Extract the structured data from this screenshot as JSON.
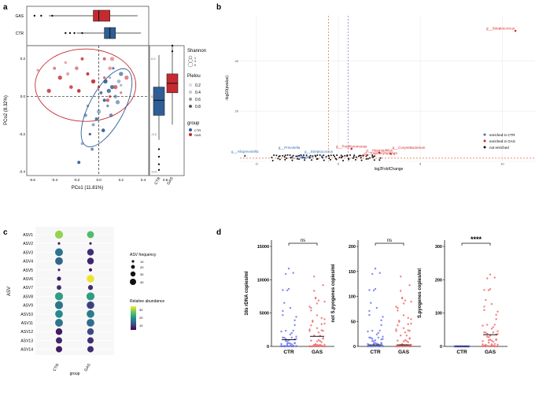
{
  "panels": {
    "a": {
      "label": "a",
      "top_box": {
        "categories": [
          "GAS",
          "CTR"
        ]
      },
      "side_box": {
        "categories": [
          "CTR",
          "GAS"
        ]
      },
      "scatter": {
        "xlabel": "PCo1 (11.81%)",
        "ylabel": "PCo2 (8.32%)",
        "xticks": [
          "-0.6",
          "-0.4",
          "-0.2",
          "0.0",
          "0.2",
          "0.4",
          "0.6"
        ],
        "yticks": [
          "0.2",
          "0.0",
          "-0.2",
          "-0.4"
        ],
        "yticks_side": [
          "0.2",
          "0.0",
          "-0.2",
          "-0.4"
        ],
        "box_xticks": [
          "CTR",
          "GAS"
        ]
      },
      "legend": {
        "shannon_title": "Shannon",
        "shannon_values": [
          "1",
          "3",
          "5"
        ],
        "pielou_title": "Pielou",
        "pielou_values": [
          "0.2",
          "0.4",
          "0.6",
          "0.8"
        ],
        "group_title": "group",
        "group_values": [
          "CTR",
          "GAS"
        ]
      },
      "colors": {
        "CTR": "#2e5e96",
        "GAS": "#c62a2f"
      }
    },
    "b": {
      "label": "b",
      "xlabel": "log2FoldChange",
      "ylabel": "-log10(pvalue)",
      "xticks": [
        "-5",
        "0",
        "5",
        "10"
      ],
      "yticks": [
        "40",
        "20"
      ],
      "labels_red": [
        "g__Streptococcus",
        "g__Porphyromonas",
        "g__Haemophilus",
        "g__Corynebacterium",
        "g__Capnocytophaga"
      ],
      "labels_blue": [
        "g__Prevotella",
        "g__Alloprevotella",
        "g__Streptococcus",
        "g__Prevotella"
      ],
      "legend": [
        "enriched in CTR",
        "enriched in GAS",
        "not enriched"
      ],
      "colors": {
        "ctr": "#3b6fb6",
        "gas": "#d62728",
        "none": "#111111"
      }
    },
    "c": {
      "label": "c",
      "ylabel": "ASV",
      "xlabel": "group",
      "rows": [
        "ASV1",
        "ASV2",
        "ASV3",
        "ASV4",
        "ASV5",
        "ASV6",
        "ASV7",
        "ASV8",
        "ASV9",
        "ASV10",
        "ASV11",
        "ASV12",
        "ASV13",
        "ASV14"
      ],
      "cols": [
        "CTR",
        "GAS"
      ],
      "legend_size_title": "ASV frequency",
      "legend_size_values": [
        "10",
        "20",
        "30",
        "40"
      ],
      "legend_color_title": "Relative abundance",
      "legend_color_ticks": [
        "30",
        "20",
        "10"
      ]
    },
    "d": {
      "label": "d",
      "plots": [
        {
          "ylabel": "16s rDNA copies/ml",
          "yticks": [
            "15000",
            "10000",
            "5000",
            "0"
          ],
          "sig": "ns",
          "cats": [
            "CTR",
            "GAS"
          ]
        },
        {
          "ylabel": "not S.pyogenes copies/ml",
          "yticks": [
            "200",
            "150",
            "100",
            "50",
            "0"
          ],
          "sig": "ns",
          "cats": [
            "CTR",
            "GAS"
          ]
        },
        {
          "ylabel": "S.pyogenes copies/ml",
          "yticks": [
            "300",
            "200",
            "100",
            "0"
          ],
          "sig": "****",
          "cats": [
            "CTR",
            "GAS"
          ]
        }
      ],
      "colors": {
        "CTR": "#6b77e8",
        "GAS": "#f06a6a"
      }
    }
  },
  "chart_data": [
    {
      "type": "scatter",
      "title": "a",
      "xlabel": "PCo1 (11.81%)",
      "ylabel": "PCo2 (8.32%)",
      "xlim": [
        -0.65,
        0.45
      ],
      "ylim": [
        -0.42,
        0.27
      ],
      "series": [
        {
          "name": "CTR",
          "points": [
            [
              0.1,
              0.1
            ],
            [
              0.12,
              0.05
            ],
            [
              0.15,
              0.0
            ],
            [
              0.05,
              -0.02
            ],
            [
              0.08,
              -0.05
            ],
            [
              0.0,
              -0.08
            ],
            [
              -0.02,
              -0.12
            ],
            [
              -0.05,
              -0.15
            ],
            [
              -0.08,
              -0.2
            ],
            [
              0.2,
              0.12
            ],
            [
              0.18,
              0.08
            ],
            [
              0.02,
              0.02
            ],
            [
              -0.1,
              -0.05
            ],
            [
              0.06,
              0.08
            ],
            [
              0.11,
              -0.1
            ],
            [
              -0.15,
              -0.25
            ],
            [
              0.13,
              0.15
            ],
            [
              0.17,
              -0.03
            ],
            [
              0.04,
              -0.18
            ],
            [
              -0.06,
              -0.28
            ],
            [
              0.2,
              0.06
            ],
            [
              0.09,
              0.03
            ],
            [
              -0.12,
              -0.1
            ],
            [
              -0.18,
              -0.35
            ]
          ]
        },
        {
          "name": "GAS",
          "points": [
            [
              -0.3,
              0.18
            ],
            [
              -0.35,
              0.1
            ],
            [
              -0.2,
              0.15
            ],
            [
              -0.1,
              0.12
            ],
            [
              0.05,
              0.1
            ],
            [
              0.12,
              0.2
            ],
            [
              -0.25,
              0.05
            ],
            [
              -0.4,
              0.15
            ],
            [
              0.0,
              0.05
            ],
            [
              0.15,
              0.05
            ],
            [
              0.1,
              0.15
            ],
            [
              -0.15,
              0.2
            ],
            [
              0.2,
              0.02
            ],
            [
              -0.05,
              0.08
            ],
            [
              0.08,
              -0.02
            ],
            [
              -0.28,
              0.12
            ],
            [
              0.1,
              0.0
            ],
            [
              0.25,
              0.1
            ],
            [
              -0.18,
              0.03
            ],
            [
              0.05,
              0.2
            ],
            [
              -0.55,
              0.14
            ],
            [
              -0.45,
              0.03
            ]
          ]
        }
      ],
      "marginal_boxplots": {
        "PCo1": {
          "GAS": {
            "q1": -0.05,
            "median": 0.0,
            "q3": 0.1,
            "whisker_low": -0.45,
            "whisker_high": 0.35
          },
          "CTR": {
            "q1": 0.05,
            "median": 0.1,
            "q3": 0.15,
            "whisker_low": -0.2,
            "whisker_high": 0.38
          }
        },
        "PCo2": {
          "CTR": {
            "q1": -0.1,
            "median": -0.02,
            "q3": 0.05,
            "whisker_low": -0.23,
            "whisker_high": 0.22
          },
          "GAS": {
            "q1": 0.02,
            "median": 0.07,
            "q3": 0.12,
            "whisker_low": -0.15,
            "whisker_high": 0.27
          }
        }
      }
    },
    {
      "type": "scatter",
      "title": "b",
      "xlabel": "log2FoldChange",
      "ylabel": "-log10(pvalue)",
      "xlim": [
        -6,
        12
      ],
      "ylim": [
        0,
        58
      ],
      "series": [
        {
          "name": "enriched in GAS",
          "points": [
            [
              10.8,
              52
            ],
            [
              0.8,
              5
            ],
            [
              2.5,
              3.5
            ],
            [
              3.2,
              3
            ],
            [
              1.5,
              2.3
            ]
          ]
        },
        {
          "name": "enriched in CTR",
          "points": [
            [
              -5.7,
              2.2
            ],
            [
              -2.3,
              2.5
            ],
            [
              -2.2,
              1.5
            ],
            [
              -1.0,
              2.0
            ]
          ]
        }
      ]
    },
    {
      "type": "heatmap",
      "title": "c",
      "categories": [
        "CTR",
        "GAS"
      ],
      "rows": [
        "ASV1",
        "ASV2",
        "ASV3",
        "ASV4",
        "ASV5",
        "ASV6",
        "ASV7",
        "ASV8",
        "ASV9",
        "ASV10",
        "ASV11",
        "ASV12",
        "ASV13",
        "ASV14"
      ],
      "series": [
        {
          "name": "CTR",
          "abundance": [
            30,
            2,
            14,
            12,
            3,
            3,
            5,
            20,
            14,
            17,
            14,
            3,
            4,
            3
          ],
          "frequency": [
            38,
            5,
            37,
            36,
            5,
            15,
            18,
            38,
            38,
            36,
            37,
            30,
            28,
            28
          ]
        },
        {
          "name": "GAS",
          "abundance": [
            25,
            2,
            5,
            4,
            3,
            35,
            5,
            20,
            7,
            15,
            13,
            8,
            5,
            5
          ],
          "frequency": [
            32,
            5,
            30,
            30,
            10,
            35,
            20,
            38,
            35,
            36,
            36,
            30,
            28,
            28
          ]
        }
      ]
    },
    {
      "type": "scatter",
      "title": "d",
      "series": [
        {
          "name": "16s rDNA copies/ml",
          "ylim": [
            0,
            15000
          ],
          "CTR_median": 1000,
          "GAS_median": 1500
        },
        {
          "name": "not S.pyogenes copies/ml",
          "ylim": [
            0,
            200
          ],
          "CTR_median": 3,
          "GAS_median": 3
        },
        {
          "name": "S.pyogenes copies/ml",
          "ylim": [
            0,
            300
          ],
          "CTR_median": 0,
          "GAS_median": 35
        }
      ]
    }
  ]
}
